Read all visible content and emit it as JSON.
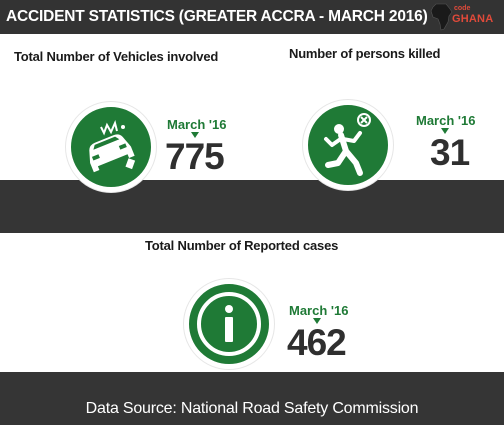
{
  "header": {
    "title": "ACCIDENT STATISTICS (GREATER ACCRA - MARCH 2016)",
    "logo": {
      "top": "code",
      "bottom": "GHANA",
      "icon": "africa-map-icon"
    }
  },
  "stats": {
    "vehicles": {
      "label": "Total Number of Vehicles involved",
      "period": "March '16",
      "value": "775",
      "icon": "car-crash-icon"
    },
    "killed": {
      "label": "Number of persons killed",
      "period": "March '16",
      "value": "31",
      "icon": "falling-person-icon"
    },
    "reported": {
      "label": "Total Number of Reported cases",
      "period": "March '16",
      "value": "462",
      "icon": "info-icon"
    }
  },
  "footer": {
    "source": "Data Source: National Road Safety Commission"
  },
  "colors": {
    "accent": "#1f7a36",
    "band": "#353535",
    "logo": "#e04a3a"
  }
}
